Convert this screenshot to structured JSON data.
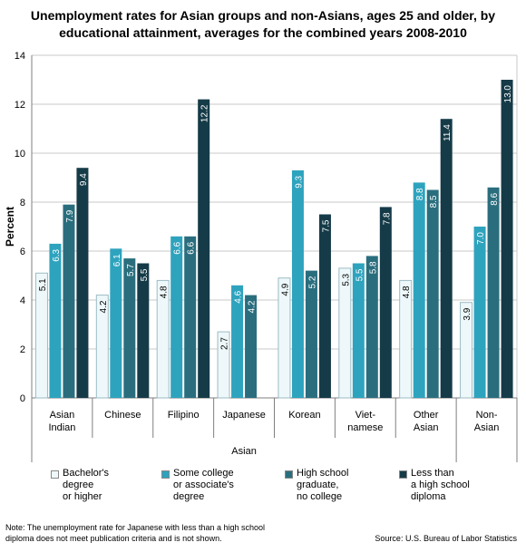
{
  "title": {
    "line1": "Unemployment rates for Asian groups and non-Asians, ages 25 and older, by",
    "line2": "educational attainment, averages for the combined years 2008-2010"
  },
  "chart_data": {
    "type": "bar",
    "ylabel": "Percent",
    "xlabel": "Asian",
    "ylim": [
      0,
      14
    ],
    "yticks": [
      0,
      2,
      4,
      6,
      8,
      10,
      12,
      14
    ],
    "grid": true,
    "legend_position": "bottom",
    "categories": [
      [
        "Asian",
        "Indian"
      ],
      [
        "Chinese"
      ],
      [
        "Filipino"
      ],
      [
        "Japanese"
      ],
      [
        "Korean"
      ],
      [
        "Viet-",
        "namese"
      ],
      [
        "Other",
        "Asian"
      ],
      [
        "Non-",
        "Asian"
      ]
    ],
    "series": [
      {
        "name": [
          "Bachelor's",
          "degree",
          "or higher"
        ],
        "color": "#eef8fa",
        "labelColor": "#000000",
        "values": [
          5.1,
          4.2,
          4.8,
          2.7,
          4.9,
          5.3,
          4.8,
          3.9
        ],
        "labels": [
          "5.1",
          "4.2",
          "4.8",
          "2.7",
          "4.9",
          "5.3",
          "4.8",
          "3.9"
        ]
      },
      {
        "name": [
          "Some college",
          "or associate's",
          "degree"
        ],
        "color": "#2ea3be",
        "labelColor": "#ffffff",
        "values": [
          6.3,
          6.1,
          6.6,
          4.6,
          9.3,
          5.5,
          8.8,
          7.0
        ],
        "labels": [
          "6.3",
          "6.1",
          "6.6",
          "4.6",
          "9.3",
          "5.5",
          "8.8",
          "7.0"
        ]
      },
      {
        "name": [
          "High school",
          "graduate,",
          "no college"
        ],
        "color": "#2a6e7e",
        "labelColor": "#ffffff",
        "values": [
          7.9,
          5.7,
          6.6,
          4.2,
          5.2,
          5.8,
          8.5,
          8.6
        ],
        "labels": [
          "7.9",
          "5.7",
          "6.6",
          "4.2",
          "5.2",
          "5.8",
          "8.5",
          "8.6"
        ]
      },
      {
        "name": [
          "Less than",
          "a high school",
          "diploma"
        ],
        "color": "#163b48",
        "labelColor": "#ffffff",
        "values": [
          9.4,
          5.5,
          12.2,
          null,
          7.5,
          7.8,
          11.4,
          13.0
        ],
        "labels": [
          "9.4",
          "5.5",
          "12.2",
          "",
          "7.5",
          "7.8",
          "11.4",
          "13.0"
        ]
      }
    ]
  },
  "note": {
    "line1": "Note: The unemployment rate for Japanese with less than a high school",
    "line2": "diploma does not meet publication criteria and is not shown."
  },
  "source": "Source: U.S. Bureau of Labor Statistics"
}
